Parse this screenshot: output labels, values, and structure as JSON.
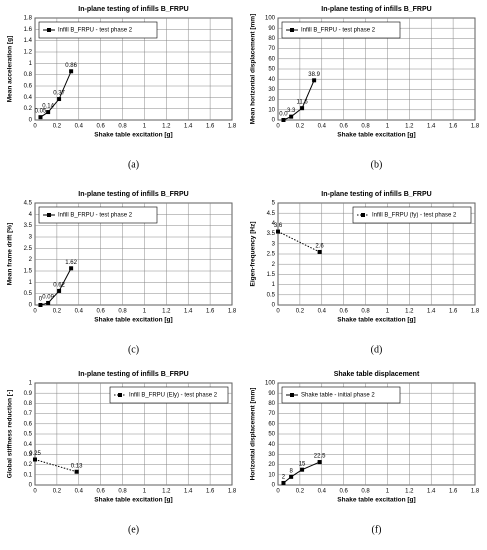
{
  "chart_data": [
    {
      "type": "line",
      "panel": "(a)",
      "title": "In-plane testing of infills B_FRPU",
      "x_label": "Shake table excitation [g]",
      "y_label": "Mean acceleration [g]",
      "xlim": [
        0,
        1.8
      ],
      "xticks": [
        0,
        0.2,
        0.4,
        0.6,
        0.8,
        1,
        1.2,
        1.4,
        1.6,
        1.8
      ],
      "ylim": [
        0,
        1.8
      ],
      "yticks": [
        0,
        0.2,
        0.4,
        0.6,
        0.8,
        1,
        1.2,
        1.4,
        1.6,
        1.8
      ],
      "grid": true,
      "legend": "upper-left",
      "series": [
        {
          "name": "Infill B_FRPU - test phase 2",
          "color": "#000000",
          "line_style": "solid",
          "x": [
            0.05,
            0.12,
            0.22,
            0.33
          ],
          "values": [
            0.05,
            0.14,
            0.37,
            0.86
          ]
        }
      ]
    },
    {
      "type": "line",
      "panel": "(b)",
      "title": "In-plane testing of infills B_FRPU",
      "x_label": "Shake table excitation [g]",
      "y_label": "Mean horizontal displacement [mm]",
      "xlim": [
        0,
        1.8
      ],
      "xticks": [
        0,
        0.2,
        0.4,
        0.6,
        0.8,
        1,
        1.2,
        1.4,
        1.6,
        1.8
      ],
      "ylim": [
        0,
        100
      ],
      "yticks": [
        0,
        10,
        20,
        30,
        40,
        50,
        60,
        70,
        80,
        90,
        100
      ],
      "grid": true,
      "legend": "upper-left",
      "series": [
        {
          "name": "Infill B_FRPU - test phase 2",
          "color": "#000000",
          "line_style": "solid",
          "x": [
            0.05,
            0.12,
            0.22,
            0.33
          ],
          "values": [
            0,
            3.3,
            11.6,
            38.9
          ],
          "value_labels": [
            "0.0",
            "3.3",
            "11.6",
            "38.9"
          ]
        }
      ]
    },
    {
      "type": "line",
      "panel": "(c)",
      "title": "In-plane testing of infills B_FRPU",
      "x_label": "Shake table excitation [g]",
      "y_label": "Mean frame drift [%]",
      "xlim": [
        0,
        1.8
      ],
      "xticks": [
        0,
        0.2,
        0.4,
        0.6,
        0.8,
        1,
        1.2,
        1.4,
        1.6,
        1.8
      ],
      "ylim": [
        0,
        4.5
      ],
      "yticks": [
        0,
        0.5,
        1,
        1.5,
        2,
        2.5,
        3,
        3.5,
        4,
        4.5
      ],
      "grid": true,
      "legend": "upper-left",
      "series": [
        {
          "name": "Infill B_FRPU - test phase 2",
          "color": "#000000",
          "line_style": "solid",
          "x": [
            0.05,
            0.12,
            0.22,
            0.33
          ],
          "values": [
            0,
            0.09,
            0.62,
            1.62
          ]
        }
      ]
    },
    {
      "type": "line",
      "panel": "(d)",
      "title": "In-plane testing of infills B_FRPU",
      "x_label": "Shake table excitation [g]",
      "y_label": "Eigen-frequency [Hz]",
      "xlim": [
        0,
        1.8
      ],
      "xticks": [
        0,
        0.2,
        0.4,
        0.6,
        0.8,
        1,
        1.2,
        1.4,
        1.6,
        1.8
      ],
      "ylim": [
        0,
        5
      ],
      "yticks": [
        0,
        0.5,
        1,
        1.5,
        2,
        2.5,
        3,
        3.5,
        4,
        4.5,
        5
      ],
      "grid": true,
      "legend": "upper-right",
      "series": [
        {
          "name": "Infill B_FRPU (fy) - test phase 2",
          "color": "#000000",
          "line_style": "dotted",
          "x": [
            0,
            0.38
          ],
          "values": [
            3.6,
            2.6
          ]
        }
      ]
    },
    {
      "type": "line",
      "panel": "(e)",
      "title": "In-plane testing of infills B_FRPU",
      "x_label": "Shake table excitation [g]",
      "y_label": "Global stiffness reduction [-]",
      "xlim": [
        0,
        1.8
      ],
      "xticks": [
        0,
        0.2,
        0.4,
        0.6,
        0.8,
        1,
        1.2,
        1.4,
        1.6,
        1.8
      ],
      "ylim": [
        0,
        1
      ],
      "yticks": [
        0,
        0.1,
        0.2,
        0.3,
        0.4,
        0.5,
        0.6,
        0.7,
        0.8,
        0.9,
        1
      ],
      "grid": true,
      "legend": "upper-right",
      "series": [
        {
          "name": "Infill B_FRPU (Ely) - test phase 2",
          "color": "#000000",
          "line_style": "dotted",
          "x": [
            0,
            0.38
          ],
          "values": [
            0.25,
            0.13
          ]
        }
      ]
    },
    {
      "type": "line",
      "panel": "(f)",
      "title": "Shake table displacement",
      "x_label": "Shake table excitation [g]",
      "y_label": "Horizontal displacement [mm]",
      "xlim": [
        0,
        1.8
      ],
      "xticks": [
        0,
        0.2,
        0.4,
        0.6,
        0.8,
        1,
        1.2,
        1.4,
        1.6,
        1.8
      ],
      "ylim": [
        0,
        100
      ],
      "yticks": [
        0,
        10,
        20,
        30,
        40,
        50,
        60,
        70,
        80,
        90,
        100
      ],
      "grid": true,
      "legend": "upper-left",
      "series": [
        {
          "name": "Shake table - initial phase 2",
          "color": "#000000",
          "line_style": "solid",
          "x": [
            0.05,
            0.12,
            0.22,
            0.38
          ],
          "values": [
            2,
            8,
            15,
            22.5
          ]
        }
      ]
    }
  ]
}
